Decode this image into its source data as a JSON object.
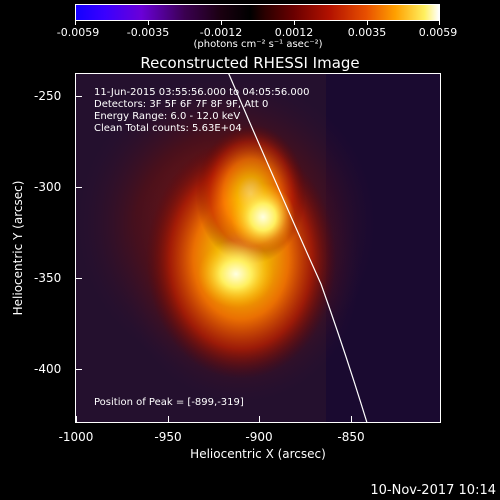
{
  "colorbar": {
    "tick_labels": [
      "-0.0059",
      "-0.0035",
      "-0.0012",
      "0.0012",
      "0.0035",
      "0.0059"
    ],
    "unit_label": "(photons cm⁻² s⁻¹ asec⁻²)"
  },
  "title": "Reconstructed RHESSI Image",
  "info": {
    "time_range": "11-Jun-2015 03:55:56.000 to 04:05:56.000",
    "detectors": "Detectors: 3F 5F 6F 7F 8F 9F, Att 0",
    "energy": "Energy Range: 6.0 - 12.0 keV",
    "clean": "Clean    Total counts: 5.63E+04",
    "peak": "Position of Peak = [-899,-319]"
  },
  "axes": {
    "xlabel": "Heliocentric X (arcsec)",
    "ylabel": "Heliocentric Y (arcsec)",
    "xticks": [
      "-1000",
      "-950",
      "-900",
      "-850"
    ],
    "yticks": [
      "-250",
      "-300",
      "-350",
      "-400"
    ]
  },
  "footer": {
    "date": "10-Nov-2017 10:14"
  }
}
